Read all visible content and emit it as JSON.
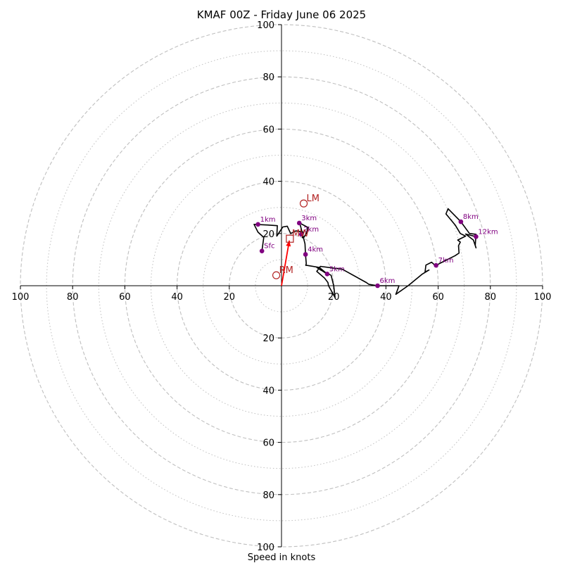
{
  "chart_data": {
    "type": "hodograph",
    "title": "KMAF 00Z - Friday June 06 2025",
    "xlabel": "Speed in knots",
    "range": 100,
    "ring_step_major": 20,
    "ring_step_minor": 10,
    "x_ticks": [
      {
        "value": -100,
        "label": "100"
      },
      {
        "value": -80,
        "label": "80"
      },
      {
        "value": -60,
        "label": "60"
      },
      {
        "value": -40,
        "label": "40"
      },
      {
        "value": -20,
        "label": "20"
      },
      {
        "value": 20,
        "label": "20"
      },
      {
        "value": 40,
        "label": "40"
      },
      {
        "value": 60,
        "label": "60"
      },
      {
        "value": 80,
        "label": "80"
      },
      {
        "value": 100,
        "label": "100"
      }
    ],
    "y_ticks": [
      {
        "value": 100,
        "label": "100"
      },
      {
        "value": 80,
        "label": "80"
      },
      {
        "value": 60,
        "label": "60"
      },
      {
        "value": 40,
        "label": "40"
      },
      {
        "value": 20,
        "label": "20"
      },
      {
        "value": -20,
        "label": "20"
      },
      {
        "value": -40,
        "label": "40"
      },
      {
        "value": -60,
        "label": "60"
      },
      {
        "value": -80,
        "label": "80"
      },
      {
        "value": -100,
        "label": "100"
      }
    ],
    "trace": [
      [
        -7.5,
        13.3
      ],
      [
        -6.8,
        18.5
      ],
      [
        -9,
        20.5
      ],
      [
        -10.5,
        23.5
      ],
      [
        -4.5,
        23.2
      ],
      [
        -1.6,
        23
      ],
      [
        -1.8,
        19
      ],
      [
        0.5,
        22.5
      ],
      [
        2.2,
        22.8
      ],
      [
        3.5,
        20
      ],
      [
        5.5,
        21
      ],
      [
        8.5,
        20.5
      ],
      [
        8,
        18.4
      ],
      [
        8.5,
        18.4
      ],
      [
        9.5,
        20
      ],
      [
        10.2,
        22.3
      ],
      [
        7,
        24
      ],
      [
        9,
        16
      ],
      [
        9.2,
        12
      ],
      [
        9.5,
        8.5
      ],
      [
        9.3,
        7.8
      ],
      [
        9.7,
        7.8
      ],
      [
        14.5,
        7
      ],
      [
        17.5,
        4.5
      ],
      [
        13.5,
        7
      ],
      [
        15,
        6
      ],
      [
        19,
        4
      ],
      [
        20,
        0
      ],
      [
        20.5,
        -4.5
      ],
      [
        18,
        0
      ],
      [
        17.8,
        1.2
      ],
      [
        16.5,
        2.9
      ],
      [
        13.5,
        5.5
      ],
      [
        14.9,
        7.4
      ],
      [
        23.3,
        6.3
      ],
      [
        32.5,
        1.2
      ],
      [
        33.5,
        0.5
      ],
      [
        36.8,
        0
      ],
      [
        45,
        0
      ],
      [
        43.8,
        -3.3
      ],
      [
        48.5,
        0
      ],
      [
        54,
        4.5
      ],
      [
        56.5,
        6
      ],
      [
        55,
        5.3
      ],
      [
        55.3,
        7.9
      ],
      [
        57.5,
        9
      ],
      [
        59,
        7.6
      ],
      [
        60.7,
        8.6
      ],
      [
        66.5,
        11.5
      ],
      [
        68,
        12.5
      ],
      [
        67.8,
        15.3
      ],
      [
        68.5,
        16.7
      ],
      [
        67.5,
        17.5
      ],
      [
        70.5,
        19
      ],
      [
        68.5,
        20
      ],
      [
        66.5,
        23.3
      ],
      [
        63,
        27.5
      ],
      [
        63.8,
        29.5
      ],
      [
        68.7,
        24.5
      ],
      [
        72,
        20
      ],
      [
        74.5,
        19.7
      ],
      [
        74.2,
        15.5
      ],
      [
        74.5,
        14.5
      ],
      [
        73.5,
        17.5
      ],
      [
        70.5,
        19.8
      ],
      [
        74.5,
        18.8
      ]
    ],
    "height_markers": [
      {
        "label": "Sfc",
        "x": -7.5,
        "y": 13.3
      },
      {
        "label": "1km",
        "x": -9,
        "y": 23.5
      },
      {
        "label": "2km",
        "x": 7.6,
        "y": 19.7
      },
      {
        "label": "3km",
        "x": 6.8,
        "y": 24
      },
      {
        "label": "4km",
        "x": 9.2,
        "y": 12
      },
      {
        "label": "5km",
        "x": 17.5,
        "y": 4.5
      },
      {
        "label": "6km",
        "x": 36.8,
        "y": 0
      },
      {
        "label": "7km",
        "x": 59.2,
        "y": 7.8
      },
      {
        "label": "8km",
        "x": 68.7,
        "y": 24.5
      },
      {
        "label": "12km",
        "x": 74.5,
        "y": 18.8
      }
    ],
    "storm_motion": [
      {
        "label": "LM",
        "x": 8.5,
        "y": 31.5
      },
      {
        "label": "RM",
        "x": -2,
        "y": 4
      }
    ],
    "mean_wind": {
      "label": "MW",
      "x": 3.2,
      "y": 18
    },
    "shear_vector": {
      "x0": 0,
      "y0": 0,
      "x1": 3,
      "y1": 17.3
    },
    "colors": {
      "grid": "#bfbfbf",
      "trace": "#000000",
      "height_marker": "#800080",
      "storm_motion": "#b22222",
      "shear_vector": "#ff0000"
    }
  }
}
